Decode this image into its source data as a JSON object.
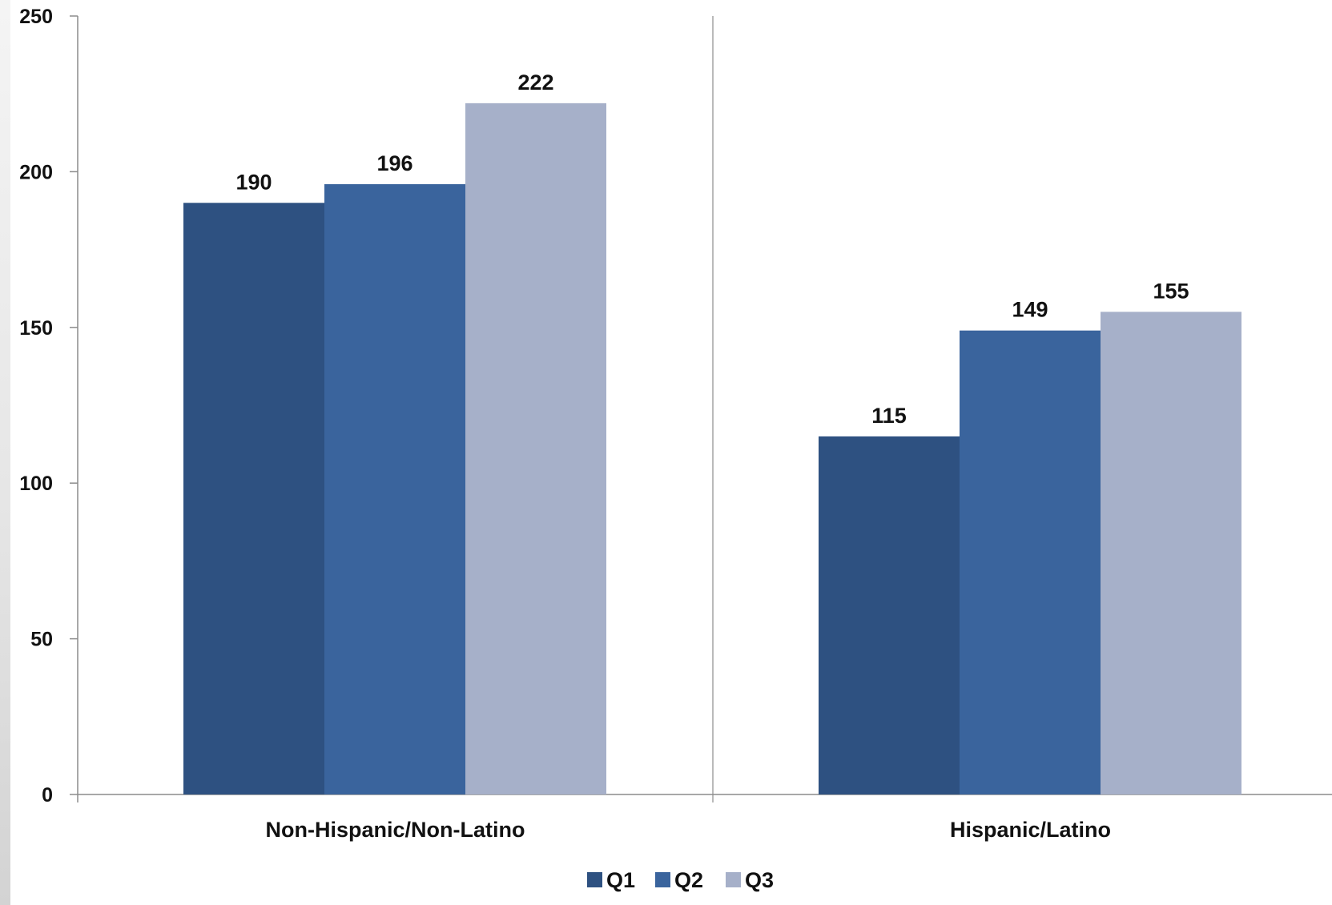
{
  "chart_data": {
    "type": "bar",
    "title": "",
    "xlabel": "",
    "ylabel": "",
    "categories": [
      "Non-Hispanic/Non-Latino",
      "Hispanic/Latino"
    ],
    "series": [
      {
        "name": "Q1",
        "values": [
          190,
          115
        ],
        "color": "#2e5181"
      },
      {
        "name": "Q2",
        "values": [
          196,
          149
        ],
        "color": "#3a649d"
      },
      {
        "name": "Q3",
        "values": [
          222,
          155
        ],
        "color": "#a6b0c9"
      }
    ],
    "ylim": [
      0,
      250
    ],
    "yticks": [
      0,
      50,
      100,
      150,
      200,
      250
    ],
    "data_labels": true,
    "grid": false,
    "legend_position": "bottom"
  }
}
